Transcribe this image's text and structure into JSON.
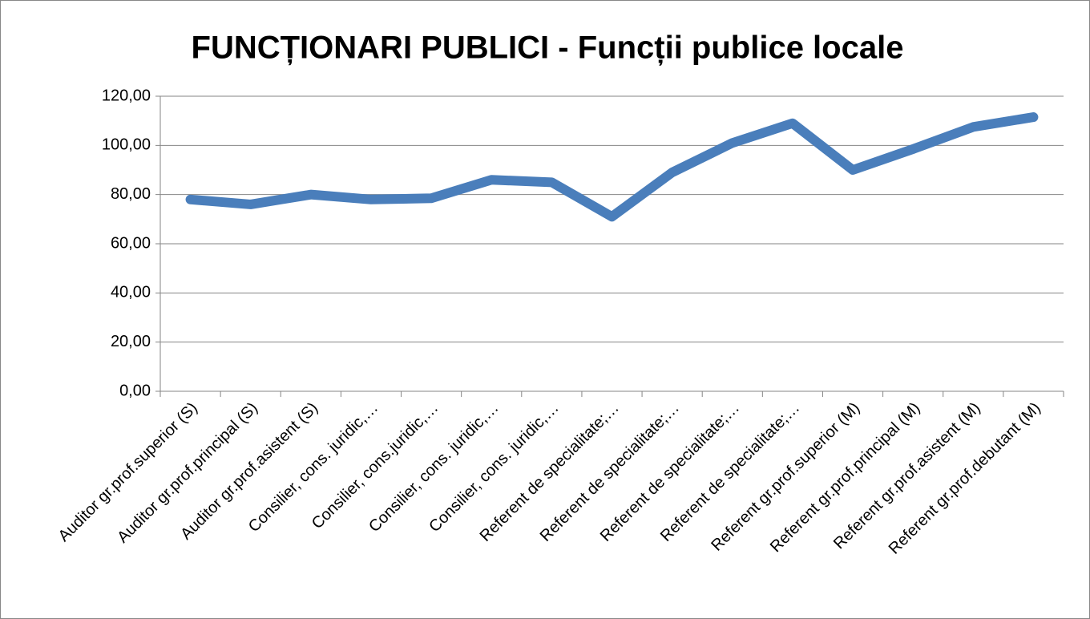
{
  "chart_data": {
    "type": "line",
    "title": "FUNCȚIONARI PUBLICI - Funcții publice locale",
    "categories": [
      "Auditor gr.prof.superior (S)",
      "Auditor gr.prof.principal  (S)",
      "Auditor gr.prof.asistent  (S)",
      "Consilier, cons. juridic,…",
      "Consilier, cons.juridic,…",
      "Consilier, cons. juridic,…",
      "Consilier, cons. juridic,…",
      "Referent de specialitate;…",
      "Referent de specialitate;…",
      "Referent de specialitate;…",
      "Referent de specialitate;…",
      "Referent gr.prof.superior (M)",
      "Referent gr.prof.principal (M)",
      "Referent gr.prof.asistent (M)",
      "Referent gr.prof.debutant (M)"
    ],
    "values": [
      78,
      76,
      80,
      78,
      78.5,
      86,
      85,
      71,
      89,
      101,
      109,
      90,
      98.5,
      107.5,
      111.5
    ],
    "color": "#4a7ebb",
    "ylim": [
      0,
      120
    ],
    "yticks": [
      {
        "value": 0,
        "label": "0,00"
      },
      {
        "value": 20,
        "label": "20,00"
      },
      {
        "value": 40,
        "label": "40,00"
      },
      {
        "value": 60,
        "label": "60,00"
      },
      {
        "value": 80,
        "label": "80,00"
      },
      {
        "value": 100,
        "label": "100,00"
      },
      {
        "value": 120,
        "label": "120,00"
      }
    ],
    "grid": true
  }
}
